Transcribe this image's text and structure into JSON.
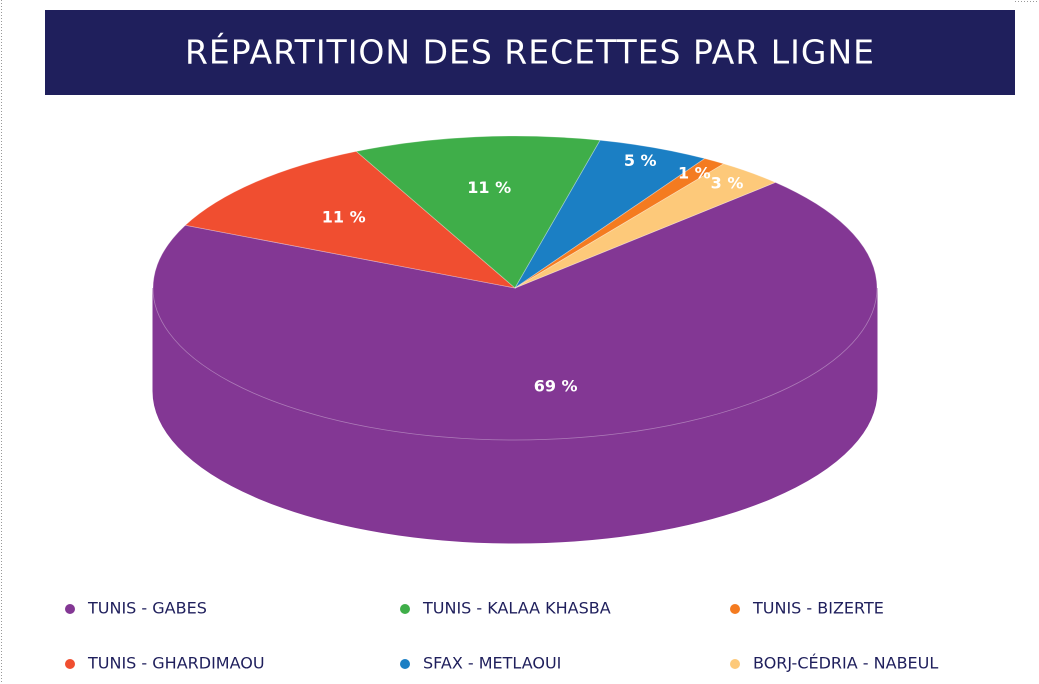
{
  "chart_data": {
    "type": "pie",
    "title": "RÉPARTITION DES RECETTES PAR LIGNE",
    "categories": [
      "TUNIS - GABES",
      "TUNIS - GHARDIMAOU",
      "TUNIS - KALAA KHASBA",
      "SFAX - METLAOUI",
      "TUNIS - BIZERTE",
      "BORJ-CÉDRIA - NABEUL"
    ],
    "values": [
      69,
      11,
      11,
      5,
      1,
      3
    ],
    "value_labels": [
      "69 %",
      "11 %",
      "11 %",
      "5 %",
      "1 %",
      "3 %"
    ],
    "colors": [
      "#833794",
      "#f04e30",
      "#3fae49",
      "#1b7fc4",
      "#f47b20",
      "#fdc97a"
    ],
    "legend": "bottom"
  }
}
